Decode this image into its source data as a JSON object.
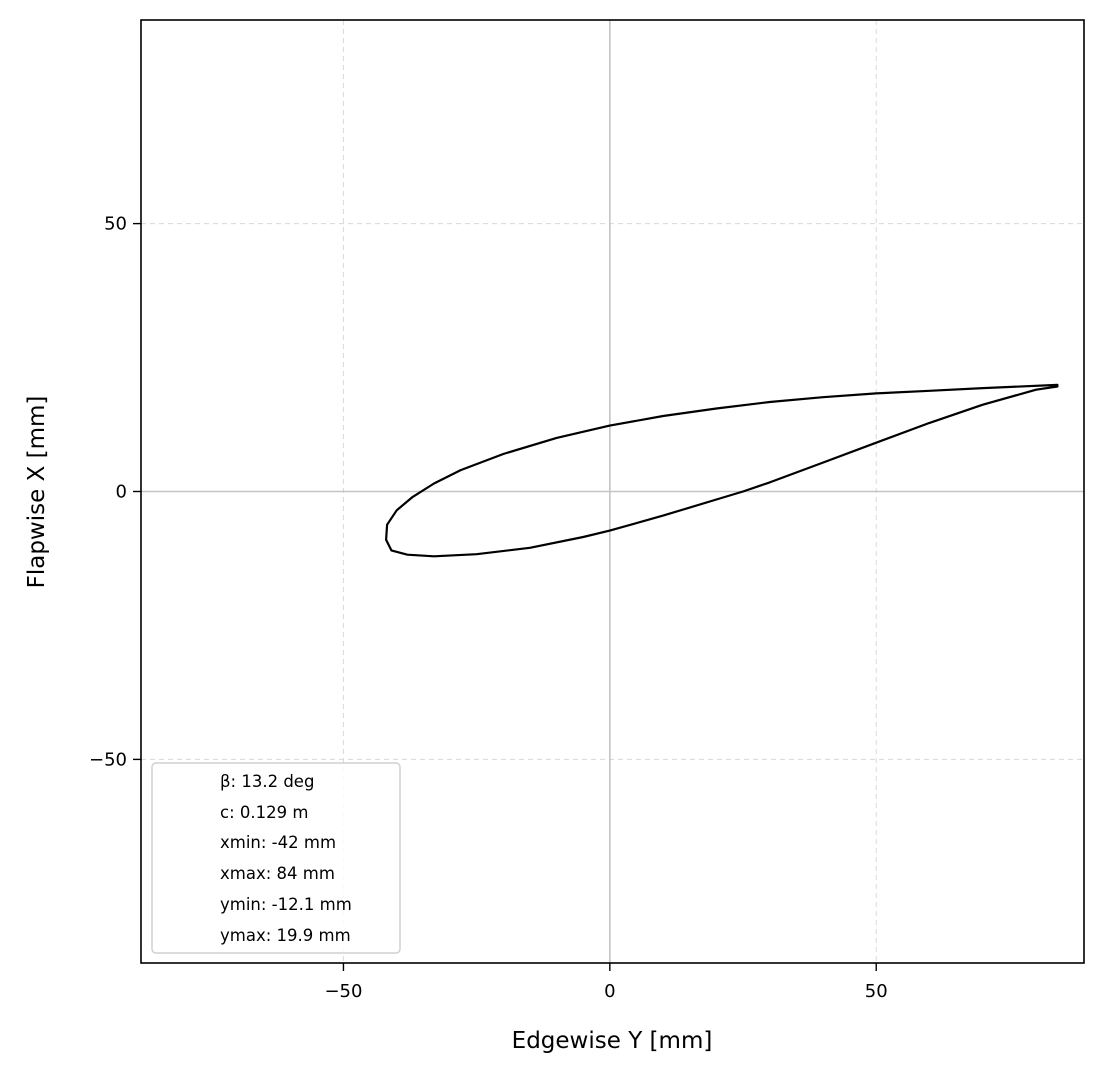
{
  "chart_data": {
    "type": "line",
    "title": "",
    "xlabel": "Edgewise Y [mm]",
    "ylabel": "Flapwise X [mm]",
    "xlim": [
      -88,
      89
    ],
    "ylim": [
      -88,
      88
    ],
    "xticks": [
      -50,
      0,
      50
    ],
    "yticks": [
      -50,
      0,
      50
    ],
    "xtick_labels": [
      "−50",
      "0",
      "50"
    ],
    "ytick_labels": [
      "−50",
      "0",
      "50"
    ],
    "grid": true,
    "legend_position": "lower-left",
    "legend_entries": [
      "β: 13.2 deg",
      "c: 0.129 m",
      "xmin: -42 mm",
      "xmax: 84 mm",
      "ymin: -12.1 mm",
      "ymax: 19.9 mm"
    ],
    "series": [
      {
        "color": "#000000",
        "x": [
          84.0,
          70.0,
          60.0,
          50.0,
          40.0,
          30.0,
          20.0,
          10.0,
          0.0,
          -10.0,
          -20.0,
          -28.0,
          -33.0,
          -37.0,
          -40.0,
          -41.8,
          -42.0,
          -41.0,
          -38.0,
          -33.0,
          -25.0,
          -15.0,
          -5.0,
          0.0,
          10.0,
          20.0,
          25.0,
          30.0,
          40.0,
          50.0,
          60.0,
          70.0,
          80.0,
          84.0,
          84.0
        ],
        "y": [
          19.9,
          19.3,
          18.8,
          18.3,
          17.6,
          16.7,
          15.5,
          14.1,
          12.3,
          10.0,
          7.0,
          4.0,
          1.5,
          -1.0,
          -3.5,
          -6.2,
          -9.0,
          -11.0,
          -11.8,
          -12.1,
          -11.7,
          -10.5,
          -8.5,
          -7.3,
          -4.5,
          -1.5,
          0.0,
          1.7,
          5.4,
          9.1,
          12.8,
          16.2,
          19.0,
          19.6,
          19.9
        ]
      }
    ]
  }
}
